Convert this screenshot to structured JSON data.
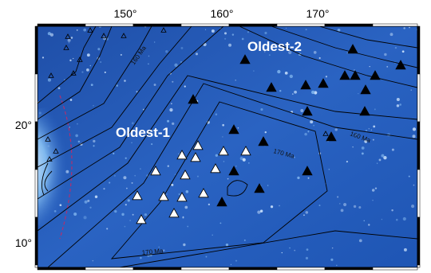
{
  "map": {
    "lon_labels": [
      "150°",
      "160°",
      "170°"
    ],
    "lat_labels": [
      "20°",
      "10°"
    ],
    "regions": [
      "Oldest-1",
      "Oldest-2"
    ],
    "contour_labels": [
      "160 Ma",
      "170 Ma",
      "160 Ma",
      "170 Ma"
    ]
  }
}
